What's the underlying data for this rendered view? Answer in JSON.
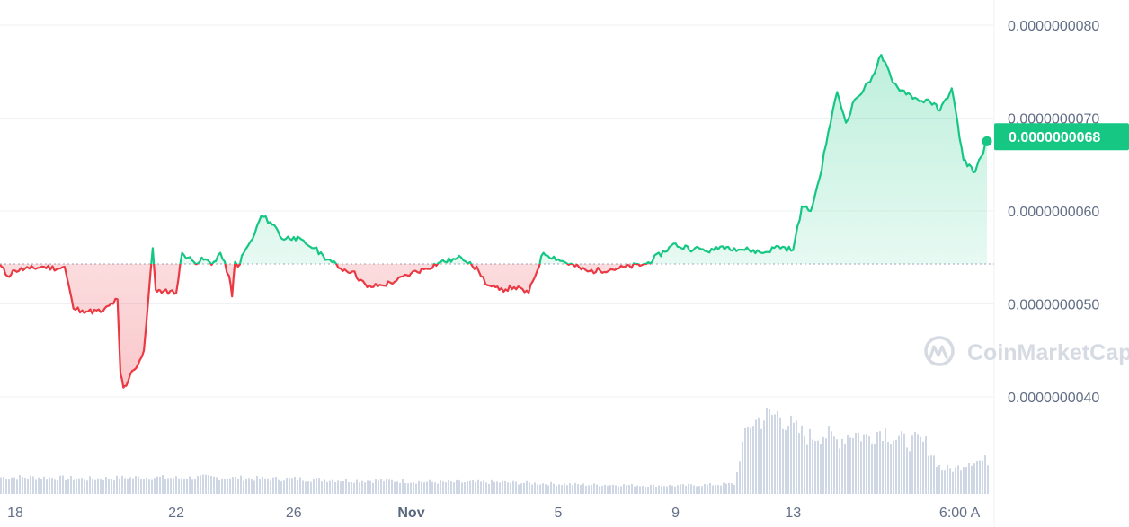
{
  "watermark": {
    "text": "CoinMarketCap"
  },
  "colors": {
    "up": "#16c784",
    "down": "#ea3943",
    "grid": "#eff2f5",
    "axis_text": "#616e85",
    "volume": "#cfd6e4"
  },
  "chart_data": {
    "type": "area",
    "title": "",
    "xlabel": "",
    "ylabel": "",
    "x_tick_labels": [
      "18",
      "22",
      "26",
      "Nov",
      "5",
      "9",
      "13",
      "6:00 A"
    ],
    "y_tick_labels": [
      "0.0000000080",
      "0.0000000070",
      "0.0000000060",
      "0.0000000050",
      "0.0000000040"
    ],
    "ylim": [
      3.7e-09,
      8.1e-09
    ],
    "baseline_price": 5.43e-09,
    "current_price": 6.8e-09,
    "current_price_label": "0.0000000068",
    "grid": true,
    "x_range_days": [
      0,
      33.6
    ],
    "x_tick_days": [
      2,
      6,
      10,
      14,
      19,
      23,
      27,
      33.2
    ],
    "price_series": {
      "x": [
        0,
        0.25,
        0.5,
        1.0,
        1.5,
        2.0,
        2.2,
        2.5,
        2.8,
        3.0,
        3.5,
        4.0,
        4.1,
        4.2,
        4.3,
        4.5,
        4.7,
        4.9,
        5.2,
        5.3,
        5.4,
        5.5,
        5.8,
        6.0,
        6.2,
        6.6,
        7.0,
        7.2,
        7.5,
        7.8,
        7.9,
        8.0,
        8.1,
        8.3,
        8.6,
        8.9,
        9.2,
        9.4,
        9.6,
        10.0,
        10.4,
        10.7,
        11.0,
        11.3,
        11.6,
        12.0,
        12.5,
        13.0,
        13.5,
        14.0,
        14.5,
        15.0,
        15.5,
        15.7,
        16.0,
        16.3,
        16.6,
        17.0,
        17.5,
        18.0,
        18.5,
        19.0,
        20.0,
        21.0,
        22.0,
        23.0,
        23.2,
        23.4,
        23.6,
        23.8,
        24.0,
        24.3,
        24.6,
        25.0,
        25.5,
        26.0,
        26.5,
        27.0,
        27.3,
        27.6,
        27.9,
        28.2,
        28.5,
        28.8,
        29.1,
        29.4,
        29.7,
        30.0,
        30.4,
        30.7,
        31.0,
        31.3,
        31.6,
        32.0,
        32.4,
        32.8,
        33.2,
        33.6
      ],
      "values": [
        5.42,
        5.3,
        5.36,
        5.38,
        5.4,
        5.38,
        5.4,
        4.95,
        4.93,
        4.92,
        4.92,
        5.05,
        4.25,
        4.1,
        4.12,
        4.28,
        4.35,
        4.5,
        5.6,
        5.15,
        5.15,
        5.12,
        5.14,
        5.12,
        5.55,
        5.45,
        5.48,
        5.42,
        5.55,
        5.3,
        5.08,
        5.45,
        5.4,
        5.55,
        5.7,
        5.95,
        5.88,
        5.82,
        5.7,
        5.72,
        5.65,
        5.6,
        5.52,
        5.45,
        5.38,
        5.35,
        5.18,
        5.2,
        5.25,
        5.33,
        5.38,
        5.45,
        5.48,
        5.5,
        5.45,
        5.35,
        5.2,
        5.15,
        5.18,
        5.12,
        5.55,
        5.48,
        5.35,
        5.38,
        5.43,
        5.65,
        5.6,
        5.62,
        5.58,
        5.6,
        5.57,
        5.58,
        5.62,
        5.6,
        5.58,
        5.55,
        5.62,
        5.58,
        6.05,
        6.0,
        6.35,
        6.85,
        7.28,
        6.95,
        7.2,
        7.3,
        7.45,
        7.68,
        7.38,
        7.3,
        7.25,
        7.18,
        7.2,
        7.08,
        7.32,
        6.55,
        6.42,
        6.75
      ],
      "unit_scale": 1e-09
    },
    "volume_series": {
      "x": [
        0,
        1,
        2,
        3,
        4,
        5,
        6,
        7,
        8,
        9,
        10,
        11,
        12,
        13,
        14,
        15,
        16,
        17,
        18,
        19,
        20,
        21,
        22,
        23,
        24,
        25,
        25.2,
        25.5,
        26,
        26.5,
        27,
        27.5,
        28,
        28.5,
        29,
        29.5,
        30,
        30.5,
        31,
        31.2,
        31.5,
        32,
        32.5,
        33,
        33.6
      ],
      "values": [
        1.0,
        1.0,
        0.95,
        0.9,
        0.95,
        1.0,
        0.95,
        1.0,
        0.95,
        0.9,
        0.9,
        0.85,
        0.8,
        0.8,
        0.75,
        0.7,
        0.7,
        0.7,
        0.65,
        0.6,
        0.55,
        0.55,
        0.5,
        0.5,
        0.55,
        0.6,
        2.7,
        4.2,
        4.6,
        4.8,
        3.9,
        3.4,
        3.6,
        3.2,
        3.7,
        3.4,
        3.9,
        3.3,
        3.1,
        3.2,
        3.0,
        1.5,
        1.5,
        2.0,
        2.0
      ]
    }
  }
}
